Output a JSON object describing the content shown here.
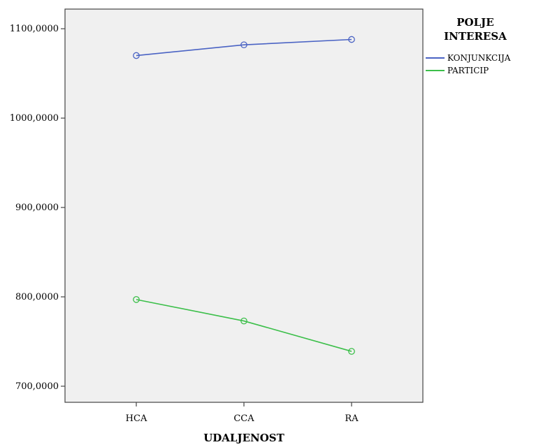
{
  "chart_data": {
    "type": "line",
    "xlabel": "UDALJENOST",
    "ylabel": "",
    "categories": [
      "HCA",
      "CCA",
      "RA"
    ],
    "ylim": [
      682,
      1122
    ],
    "yticks": [
      700,
      800,
      900,
      1000,
      1100
    ],
    "ytick_labels": [
      "700,0000",
      "800,0000",
      "900,0000",
      "1000,0000",
      "1100,0000"
    ],
    "legend": {
      "title_lines": [
        "POLJE",
        "INTERESA"
      ],
      "placement": "right"
    },
    "series": [
      {
        "name": "KONJUNKCIJA",
        "color": "#4a63c4",
        "values": [
          1070,
          1082,
          1088
        ]
      },
      {
        "name": "PARTICIP",
        "color": "#3cbf4a",
        "values": [
          797,
          773,
          739
        ]
      }
    ],
    "colors": {
      "plot_background": "#f0f0f0",
      "frame": "#444444"
    },
    "grid": false,
    "markers": "circle-hollow"
  }
}
